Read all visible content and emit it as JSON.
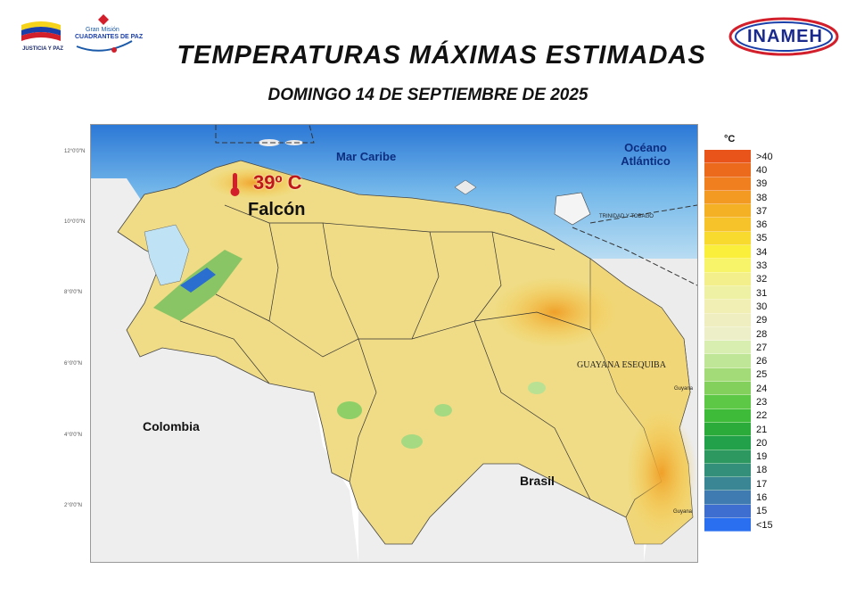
{
  "header": {
    "title": "TEMPERATURAS MÁXIMAS ESTIMADAS",
    "subtitle": "DOMINGO 14 DE SEPTIEMBRE DE 2025"
  },
  "logos": {
    "left_label": "JUSTICIA Y PAZ",
    "mission_line1": "Gran Misión",
    "mission_line2": "CUADRANTES DE PAZ",
    "right_label": "INAMEH"
  },
  "map": {
    "sea_label": "Mar Caribe",
    "ocean_label": "Océano Atlántico",
    "highlight_value": "39º C",
    "highlight_state": "Falcón",
    "country_colombia": "Colombia",
    "country_brasil": "Brasil",
    "guayana_label": "GUAYANA ESEQUIBA",
    "trinidad_label": "TRINIDAD Y TOBAGO",
    "guyana_label": "Guyana",
    "guyana_label2": "Guyana",
    "lat_labels": [
      "12°0'0\"N",
      "10°0'0\"N",
      "8°0'0\"N",
      "6°0'0\"N",
      "4°0'0\"N",
      "2°0'0\"N"
    ]
  },
  "legend": {
    "unit": "°C",
    "labels": [
      ">40",
      "40",
      "39",
      "38",
      "37",
      "36",
      "35",
      "34",
      "33",
      "32",
      "31",
      "30",
      "29",
      "28",
      "27",
      "26",
      "25",
      "24",
      "23",
      "22",
      "21",
      "20",
      "19",
      "18",
      "17",
      "16",
      "15",
      "<15"
    ],
    "colors": [
      "#e8541a",
      "#ec6a1c",
      "#ef7f1f",
      "#f29a22",
      "#f5b126",
      "#f6c42a",
      "#f8d92e",
      "#faf03b",
      "#f8f46a",
      "#f3f08c",
      "#eef0a4",
      "#f1efb4",
      "#eeeec0",
      "#ecefc8",
      "#d7eeb0",
      "#bfe596",
      "#a3db78",
      "#83d05c",
      "#5cc846",
      "#3fbb3a",
      "#2bac3a",
      "#23a04a",
      "#2d9860",
      "#338f7a",
      "#3b8694",
      "#3f7bb0",
      "#3e6fd0",
      "#2a6ff0"
    ]
  }
}
